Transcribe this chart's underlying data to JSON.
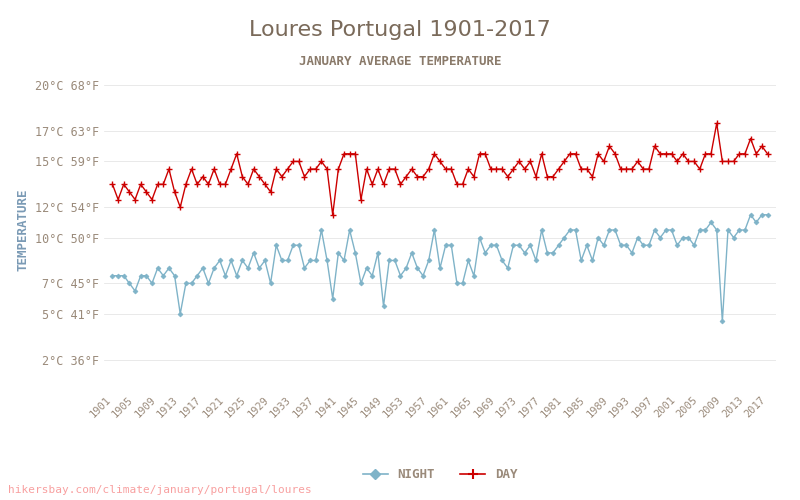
{
  "title": "Loures Portugal 1901-2017",
  "subtitle": "JANUARY AVERAGE TEMPERATURE",
  "ylabel": "TEMPERATURE",
  "watermark": "hikersbay.com/climate/january/portugal/loures",
  "years": [
    1901,
    1902,
    1903,
    1904,
    1905,
    1906,
    1907,
    1908,
    1909,
    1910,
    1911,
    1912,
    1913,
    1914,
    1915,
    1916,
    1917,
    1918,
    1919,
    1920,
    1921,
    1922,
    1923,
    1924,
    1925,
    1926,
    1927,
    1928,
    1929,
    1930,
    1931,
    1932,
    1933,
    1934,
    1935,
    1936,
    1937,
    1938,
    1939,
    1940,
    1941,
    1942,
    1943,
    1944,
    1945,
    1946,
    1947,
    1948,
    1949,
    1950,
    1951,
    1952,
    1953,
    1954,
    1955,
    1956,
    1957,
    1958,
    1959,
    1960,
    1961,
    1962,
    1963,
    1964,
    1965,
    1966,
    1967,
    1968,
    1969,
    1970,
    1971,
    1972,
    1973,
    1974,
    1975,
    1976,
    1977,
    1978,
    1979,
    1980,
    1981,
    1982,
    1983,
    1984,
    1985,
    1986,
    1987,
    1988,
    1989,
    1990,
    1991,
    1992,
    1993,
    1994,
    1995,
    1996,
    1997,
    1998,
    1999,
    2000,
    2001,
    2002,
    2003,
    2004,
    2005,
    2006,
    2007,
    2008,
    2009,
    2010,
    2011,
    2012,
    2013,
    2014,
    2015,
    2016,
    2017
  ],
  "day_temps": [
    13.5,
    12.5,
    13.5,
    13.0,
    12.5,
    13.5,
    13.0,
    12.5,
    13.5,
    13.5,
    14.5,
    13.0,
    12.0,
    13.5,
    14.5,
    13.5,
    14.0,
    13.5,
    14.5,
    13.5,
    13.5,
    14.5,
    15.5,
    14.0,
    13.5,
    14.5,
    14.0,
    13.5,
    13.0,
    14.5,
    14.0,
    14.5,
    15.0,
    15.0,
    14.0,
    14.5,
    14.5,
    15.0,
    14.5,
    11.5,
    14.5,
    15.5,
    15.5,
    15.5,
    12.5,
    14.5,
    13.5,
    14.5,
    13.5,
    14.5,
    14.5,
    13.5,
    14.0,
    14.5,
    14.0,
    14.0,
    14.5,
    15.5,
    15.0,
    14.5,
    14.5,
    13.5,
    13.5,
    14.5,
    14.0,
    15.5,
    15.5,
    14.5,
    14.5,
    14.5,
    14.0,
    14.5,
    15.0,
    14.5,
    15.0,
    14.0,
    15.5,
    14.0,
    14.0,
    14.5,
    15.0,
    15.5,
    15.5,
    14.5,
    14.5,
    14.0,
    15.5,
    15.0,
    16.0,
    15.5,
    14.5,
    14.5,
    14.5,
    15.0,
    14.5,
    14.5,
    16.0,
    15.5,
    15.5,
    15.5,
    15.0,
    15.5,
    15.0,
    15.0,
    14.5,
    15.5,
    15.5,
    17.5,
    15.0,
    15.0,
    15.0,
    15.5,
    15.5,
    16.5,
    15.5,
    16.0,
    15.5
  ],
  "night_temps": [
    7.5,
    7.5,
    7.5,
    7.0,
    6.5,
    7.5,
    7.5,
    7.0,
    8.0,
    7.5,
    8.0,
    7.5,
    5.0,
    7.0,
    7.0,
    7.5,
    8.0,
    7.0,
    8.0,
    8.5,
    7.5,
    8.5,
    7.5,
    8.5,
    8.0,
    9.0,
    8.0,
    8.5,
    7.0,
    9.5,
    8.5,
    8.5,
    9.5,
    9.5,
    8.0,
    8.5,
    8.5,
    10.5,
    8.5,
    6.0,
    9.0,
    8.5,
    10.5,
    9.0,
    7.0,
    8.0,
    7.5,
    9.0,
    5.5,
    8.5,
    8.5,
    7.5,
    8.0,
    9.0,
    8.0,
    7.5,
    8.5,
    10.5,
    8.0,
    9.5,
    9.5,
    7.0,
    7.0,
    8.5,
    7.5,
    10.0,
    9.0,
    9.5,
    9.5,
    8.5,
    8.0,
    9.5,
    9.5,
    9.0,
    9.5,
    8.5,
    10.5,
    9.0,
    9.0,
    9.5,
    10.0,
    10.5,
    10.5,
    8.5,
    9.5,
    8.5,
    10.0,
    9.5,
    10.5,
    10.5,
    9.5,
    9.5,
    9.0,
    10.0,
    9.5,
    9.5,
    10.5,
    10.0,
    10.5,
    10.5,
    9.5,
    10.0,
    10.0,
    9.5,
    10.5,
    10.5,
    11.0,
    10.5,
    4.5,
    10.5,
    10.0,
    10.5,
    10.5,
    11.5,
    11.0,
    11.5,
    11.5
  ],
  "yticks_c": [
    2,
    5,
    7,
    10,
    12,
    15,
    17,
    20
  ],
  "yticks_f": [
    36,
    41,
    45,
    50,
    54,
    59,
    63,
    68
  ],
  "xtick_years": [
    1901,
    1905,
    1909,
    1913,
    1917,
    1921,
    1925,
    1929,
    1933,
    1937,
    1941,
    1945,
    1949,
    1953,
    1957,
    1961,
    1965,
    1969,
    1973,
    1977,
    1981,
    1985,
    1989,
    1993,
    1997,
    2001,
    2005,
    2009,
    2013,
    2017
  ],
  "day_color": "#cc0000",
  "night_color": "#7fb3c8",
  "title_color": "#7a6a5a",
  "subtitle_color": "#8a7a6a",
  "axis_label_color": "#7a9ab5",
  "tick_color": "#9a8a7a",
  "watermark_color": "#f8a0a0",
  "background_color": "#ffffff",
  "legend_night_color": "#7fb3c8",
  "legend_day_color": "#cc0000"
}
